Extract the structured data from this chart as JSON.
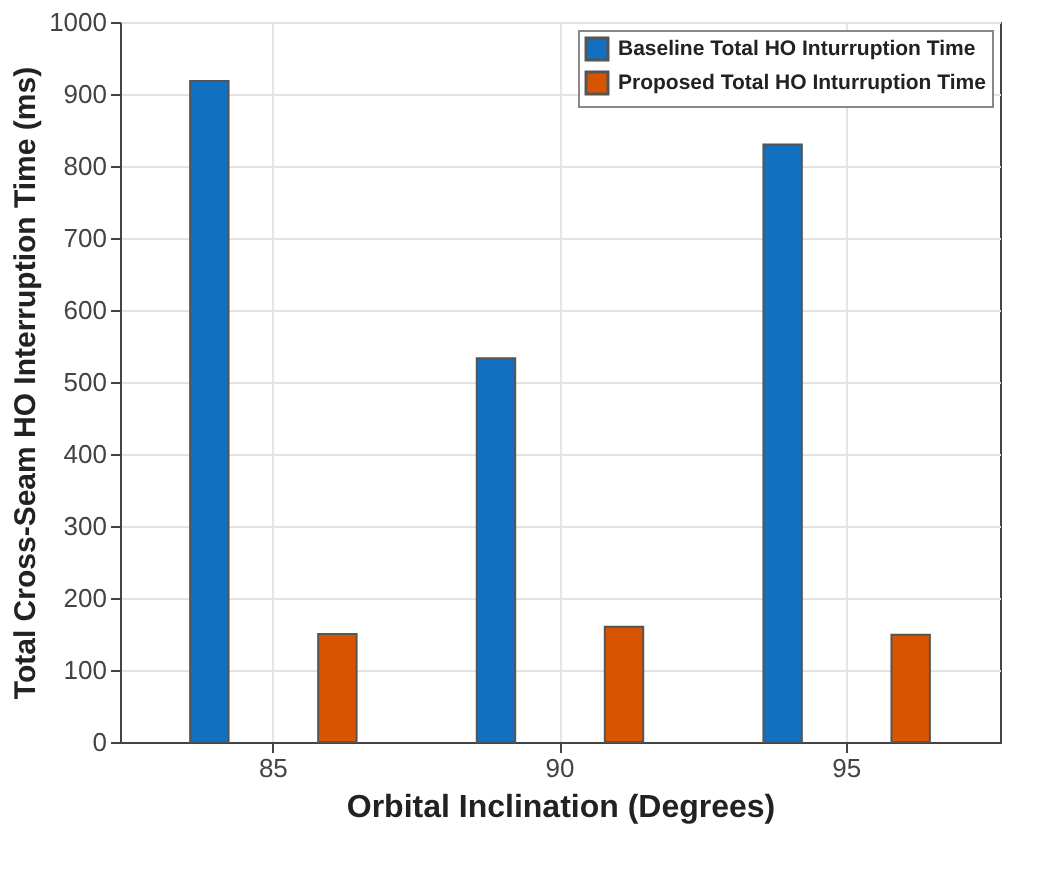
{
  "chart_data": {
    "type": "bar",
    "xlabel": "Orbital Inclination (Degrees)",
    "ylabel": "Total Cross-Seam HO Interruption Time (ms)",
    "categories": [
      "85",
      "90",
      "95"
    ],
    "series": [
      {
        "name": "Baseline Total HO Inturruption Time",
        "color": "#1170bf",
        "values": [
          918,
          533,
          830
        ]
      },
      {
        "name": "Proposed Total HO Inturruption Time",
        "color": "#d95400",
        "values": [
          150,
          160,
          149
        ]
      }
    ],
    "ylim": [
      0,
      1000
    ],
    "yticks": [
      0,
      100,
      200,
      300,
      400,
      500,
      600,
      700,
      800,
      900,
      1000
    ],
    "grid": true,
    "legend": "top right"
  }
}
